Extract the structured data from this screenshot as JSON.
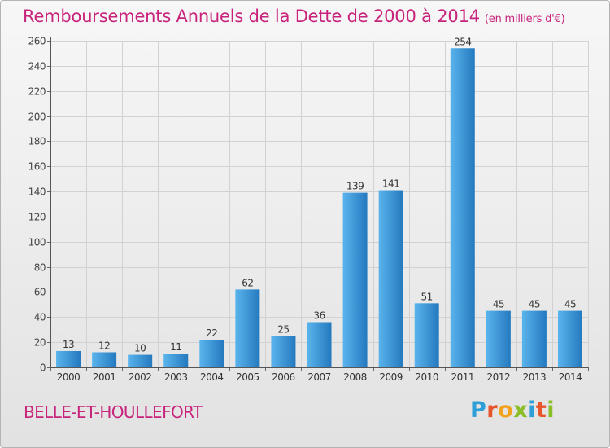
{
  "title": "Remboursements Annuels de la Dette de 2000 à 2014",
  "unit": "(en milliers d'€)",
  "commune": "BELLE-ET-HOULLEFORT",
  "logo": {
    "letters": [
      {
        "ch": "P",
        "color": "#2f9fd8"
      },
      {
        "ch": "r",
        "color": "#e8542c"
      },
      {
        "ch": "o",
        "color": "#f2a21d"
      },
      {
        "ch": "x",
        "color": "#8bbf2a"
      },
      {
        "ch": "i",
        "color": "#2f9fd8"
      },
      {
        "ch": "t",
        "color": "#e8542c"
      },
      {
        "ch": "i",
        "color": "#8bbf2a"
      }
    ]
  },
  "colors": {
    "title": "#c8247c",
    "bar_light": "#5ab4ec",
    "bar_dark": "#2479bf"
  },
  "chart_data": {
    "type": "bar",
    "categories": [
      "2000",
      "2001",
      "2002",
      "2003",
      "2004",
      "2005",
      "2006",
      "2007",
      "2008",
      "2009",
      "2010",
      "2011",
      "2012",
      "2013",
      "2014"
    ],
    "values": [
      13,
      12,
      10,
      11,
      22,
      62,
      25,
      36,
      139,
      141,
      51,
      254,
      45,
      45,
      45
    ],
    "ylim": [
      0,
      260
    ],
    "yticks": [
      0,
      20,
      40,
      60,
      80,
      100,
      120,
      140,
      160,
      180,
      200,
      220,
      240,
      260
    ],
    "grid": true
  }
}
